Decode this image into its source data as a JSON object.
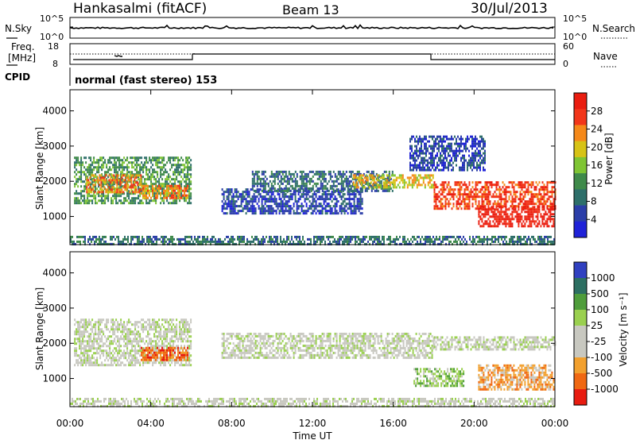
{
  "header": {
    "station": "Hankasalmi (fitACF)",
    "beam": "Beam 13",
    "date": "30/Jul/2013"
  },
  "noise_panel": {
    "left_label": "N.Sky",
    "right_label": "N.Search",
    "left_ticks": [
      "10^5",
      "10^0"
    ],
    "right_ticks": [
      "10^5",
      "10^0"
    ]
  },
  "freq_panel": {
    "left_label_1": "Freq.",
    "left_label_2": "[MHz]",
    "right_label": "Nave",
    "left_ticks": [
      "18",
      "8"
    ],
    "right_ticks": [
      "60",
      "0"
    ]
  },
  "cpid": {
    "label": "CPID",
    "mode_text": "normal (fast stereo) 153"
  },
  "colors": {
    "scale_power": [
      "#1f22d8",
      "#2b3ea8",
      "#2e6f6a",
      "#3f8a4a",
      "#7fc534",
      "#d7c316",
      "#f5891a",
      "#f2361a",
      "#ea1d10"
    ],
    "scale_velocity": [
      "#3040c0",
      "#2d6f62",
      "#4f9d3b",
      "#9ad04f",
      "#c8c8c0",
      "#c8c8c0",
      "#f2a02e",
      "#f06812",
      "#e81c10"
    ],
    "ground_scatter": "#c2c2bc"
  },
  "chart_data": [
    {
      "type": "heatmap",
      "name": "power",
      "ylabel": "Slant Range [km]",
      "yticks": [
        "1000",
        "2000",
        "3000",
        "4000"
      ],
      "ylim": [
        200,
        4600
      ],
      "xlim": [
        0,
        24
      ],
      "colorbar": {
        "label": "Power [dB]",
        "ticks": [
          "4",
          "8",
          "12",
          "16",
          "20",
          "24",
          "28"
        ]
      },
      "regions": [
        {
          "t0": 0.2,
          "t1": 6.0,
          "r0": 1400,
          "r1": 2700,
          "level": 3
        },
        {
          "t0": 0.8,
          "t1": 3.5,
          "r0": 1700,
          "r1": 2200,
          "level": 6
        },
        {
          "t0": 3.5,
          "t1": 5.8,
          "r0": 1550,
          "r1": 1900,
          "level": 6
        },
        {
          "t0": 7.5,
          "t1": 14.5,
          "r0": 1100,
          "r1": 1800,
          "level": 1
        },
        {
          "t0": 9.0,
          "t1": 16.0,
          "r0": 1700,
          "r1": 2300,
          "level": 2
        },
        {
          "t0": 14.0,
          "t1": 18.0,
          "r0": 1800,
          "r1": 2200,
          "level": 5
        },
        {
          "t0": 18.0,
          "t1": 24.0,
          "r0": 1200,
          "r1": 2000,
          "level": 7
        },
        {
          "t0": 20.2,
          "t1": 23.9,
          "r0": 700,
          "r1": 1300,
          "level": 8
        },
        {
          "t0": 16.8,
          "t1": 20.5,
          "r0": 2300,
          "r1": 3300,
          "level": 1
        },
        {
          "t0": 0.0,
          "t1": 24.0,
          "r0": 200,
          "r1": 450,
          "level": 2
        }
      ]
    },
    {
      "type": "heatmap",
      "name": "velocity",
      "ylabel": "Slant Range [km]",
      "yticks": [
        "1000",
        "2000",
        "3000",
        "4000"
      ],
      "ylim": [
        200,
        4600
      ],
      "xlim": [
        0,
        24
      ],
      "xticks": [
        "00:00",
        "04:00",
        "08:00",
        "12:00",
        "16:00",
        "20:00",
        "00:00"
      ],
      "xlabel": "Time UT",
      "colorbar": {
        "label": "Velocity [m s⁻¹]",
        "ticks": [
          "1000",
          "500",
          "100",
          "25",
          "-25",
          "-100",
          "-500",
          "-1000"
        ]
      },
      "regions": [
        {
          "t0": 0.2,
          "t1": 6.0,
          "r0": 1400,
          "r1": 2700,
          "level": 4
        },
        {
          "t0": 3.5,
          "t1": 5.8,
          "r0": 1550,
          "r1": 1900,
          "level": 7
        },
        {
          "t0": 7.5,
          "t1": 18.0,
          "r0": 1600,
          "r1": 2300,
          "level": 4
        },
        {
          "t0": 18.0,
          "t1": 24.0,
          "r0": 1800,
          "r1": 2200,
          "level": 4
        },
        {
          "t0": 20.2,
          "t1": 23.9,
          "r0": 700,
          "r1": 1400,
          "level": 6
        },
        {
          "t0": 17.0,
          "t1": 19.5,
          "r0": 800,
          "r1": 1300,
          "level": 3
        },
        {
          "t0": 0.0,
          "t1": 24.0,
          "r0": 200,
          "r1": 450,
          "level": 4
        }
      ]
    }
  ]
}
